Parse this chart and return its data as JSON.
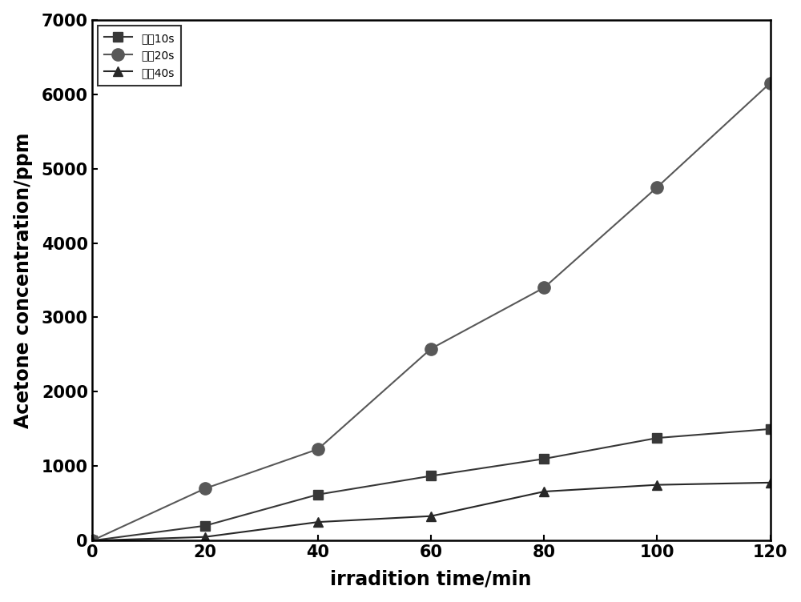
{
  "x": [
    0,
    20,
    40,
    60,
    80,
    100,
    120
  ],
  "series": [
    {
      "label": "酸兤10s",
      "y": [
        0,
        200,
        620,
        870,
        1100,
        1380,
        1500
      ],
      "marker": "s",
      "color": "#383838",
      "markersize": 9,
      "linewidth": 1.5
    },
    {
      "label": "酸兤20s",
      "y": [
        0,
        700,
        1230,
        2580,
        3400,
        4750,
        6150
      ],
      "marker": "o",
      "color": "#585858",
      "markersize": 11,
      "linewidth": 1.5
    },
    {
      "label": "酸兤40s",
      "y": [
        0,
        50,
        250,
        330,
        660,
        750,
        780
      ],
      "marker": "^",
      "color": "#282828",
      "markersize": 9,
      "linewidth": 1.5
    }
  ],
  "xlabel": "irradition time/min",
  "ylabel": "Acetone concentration/ppm",
  "xlim": [
    0,
    120
  ],
  "ylim": [
    0,
    7000
  ],
  "yticks": [
    0,
    1000,
    2000,
    3000,
    4000,
    5000,
    6000,
    7000
  ],
  "xticks": [
    0,
    20,
    40,
    60,
    80,
    100,
    120
  ],
  "xlabel_fontsize": 17,
  "ylabel_fontsize": 17,
  "tick_fontsize": 15,
  "legend_fontsize": 15,
  "background_color": "#ffffff"
}
